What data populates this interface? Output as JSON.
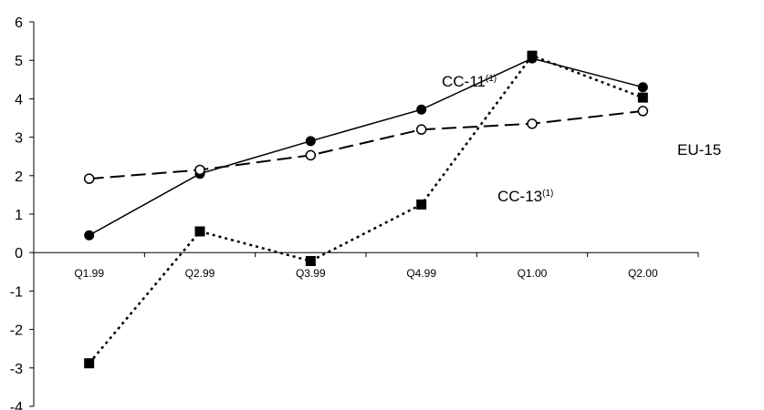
{
  "chart_data": {
    "type": "line",
    "title": "",
    "xlabel": "",
    "ylabel": "",
    "categories": [
      "Q1.99",
      "Q2.99",
      "Q3.99",
      "Q4.99",
      "Q1.00",
      "Q2.00"
    ],
    "ylim": [
      -4,
      6
    ],
    "yticks": [
      "6",
      "5",
      "4",
      "3",
      "2",
      "1",
      "0",
      "-1",
      "-2",
      "-3",
      "-4"
    ],
    "grid": false,
    "legend": "none",
    "series": [
      {
        "name": "CC-11",
        "label_main": "CC-11",
        "label_sup": "(1)",
        "values": [
          0.45,
          2.05,
          2.9,
          3.72,
          5.05,
          4.3
        ],
        "style": "solid",
        "marker": "filled-circle",
        "color": "#000000"
      },
      {
        "name": "EU-15",
        "label_main": "EU-15",
        "label_sup": "",
        "values": [
          1.92,
          2.15,
          2.53,
          3.2,
          3.35,
          3.68
        ],
        "style": "dashed",
        "marker": "open-circle",
        "color": "#000000"
      },
      {
        "name": "CC-13",
        "label_main": "CC-13",
        "label_sup": "(1)",
        "values": [
          -2.88,
          0.55,
          -0.22,
          1.25,
          5.12,
          4.03
        ],
        "style": "dotted",
        "marker": "filled-square",
        "color": "#000000"
      }
    ]
  }
}
